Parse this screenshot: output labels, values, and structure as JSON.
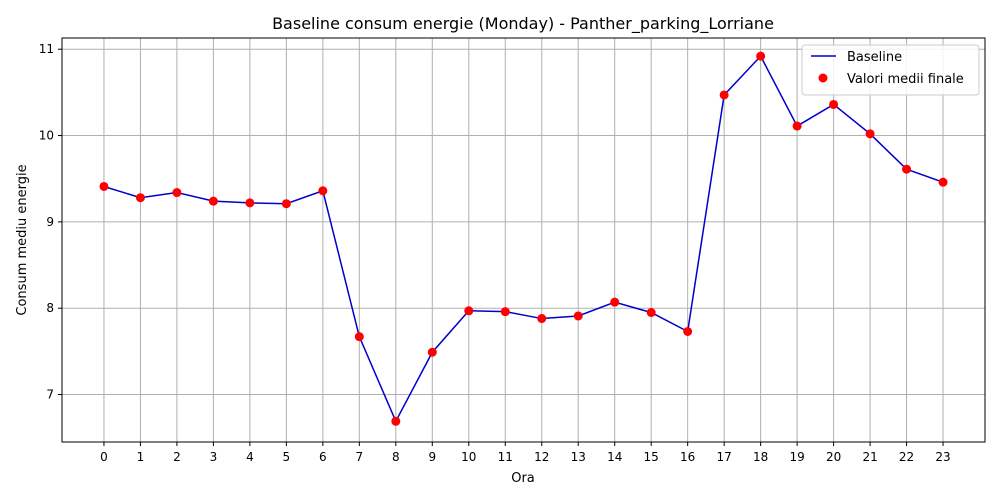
{
  "chart_data": {
    "type": "line",
    "title": "Baseline consum energie (Monday) - Panther_parking_Lorriane",
    "xlabel": "Ora",
    "ylabel": "Consum mediu energie",
    "x": [
      0,
      1,
      2,
      3,
      4,
      5,
      6,
      7,
      8,
      9,
      10,
      11,
      12,
      13,
      14,
      15,
      16,
      17,
      18,
      19,
      20,
      21,
      22,
      23
    ],
    "xticks": [
      "0",
      "1",
      "2",
      "3",
      "4",
      "5",
      "6",
      "7",
      "8",
      "9",
      "10",
      "11",
      "12",
      "13",
      "14",
      "15",
      "16",
      "17",
      "18",
      "19",
      "20",
      "21",
      "22",
      "23"
    ],
    "yticks": [
      "7",
      "8",
      "9",
      "10",
      "11"
    ],
    "xlim": [
      -1.15,
      24.15
    ],
    "ylim": [
      6.45,
      11.13
    ],
    "grid": true,
    "legend_position": "top-right",
    "series": [
      {
        "name": "Baseline",
        "kind": "line",
        "color": "#0000cc",
        "values": [
          9.41,
          9.28,
          9.34,
          9.24,
          9.22,
          9.21,
          9.36,
          7.67,
          6.69,
          7.49,
          7.97,
          7.96,
          7.88,
          7.91,
          8.07,
          7.95,
          7.73,
          10.47,
          10.92,
          10.11,
          10.36,
          10.02,
          9.61,
          9.46
        ]
      },
      {
        "name": "Valori medii finale",
        "kind": "scatter",
        "color": "#ff0000",
        "values": [
          9.41,
          9.28,
          9.34,
          9.24,
          9.22,
          9.21,
          9.36,
          7.67,
          6.69,
          7.49,
          7.97,
          7.96,
          7.88,
          7.91,
          8.07,
          7.95,
          7.73,
          10.47,
          10.92,
          10.11,
          10.36,
          10.02,
          9.61,
          9.46
        ]
      }
    ]
  }
}
